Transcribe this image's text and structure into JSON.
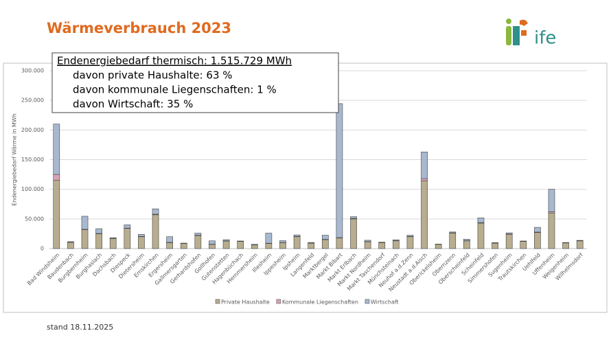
{
  "title": "Wärmeverbrauch 2023",
  "logo": "ife",
  "footer": "stand 18.11.2025",
  "chart_data": {
    "type": "stacked-bar",
    "annotations": [
      "Endenergiebedarf thermisch: 1.515.729  MWh",
      "davon private Haushalte: 63 %",
      "davon kommunale Liegenschaften: 1 %",
      "davon Wirtschaft: 35 %"
    ],
    "ylabel": "Endenergiebedarf Wärme in MWh",
    "categories": [
      "Bad Windsheim",
      "Baudenbach",
      "Burgbernheim",
      "Burghaslach",
      "Dachsbach",
      "Diespeck",
      "Dietersheim",
      "Emskirchen",
      "Ergersheim",
      "Gallmersgarten",
      "Gerhardshofen",
      "Gollhofen",
      "Gutenstetten",
      "Hagenbüchach",
      "Hemmersheim",
      "Illesheim",
      "Ippesheim",
      "Ipsheim",
      "Langenfeld",
      "Marktbergel",
      "Markt Bibart",
      "Markt Erlbach",
      "Markt Nordheim",
      "Markt Taschendorf",
      "Münchsteinach",
      "Neuhof a.d.Zenn",
      "Neustadt a.d.Aisch",
      "Oberickelsheim",
      "Obernzenn",
      "Oberscheinfeld",
      "Scheinfeld",
      "Simmershofen",
      "Sugenheim",
      "Trautskirchen",
      "Uehlfeld",
      "Uffenheim",
      "Weigenheim",
      "Wilhelmsdorf"
    ],
    "series": [
      {
        "name": "Private Haushalte",
        "color": "#b8ad8e",
        "values": [
          115000,
          10500,
          32000,
          25000,
          17000,
          34000,
          20000,
          57000,
          10000,
          8500,
          22000,
          7000,
          12500,
          12000,
          6000,
          8500,
          10000,
          20000,
          9000,
          15000,
          18000,
          50000,
          11500,
          10000,
          13000,
          20000,
          114000,
          7000,
          26000,
          13000,
          43000,
          9000,
          24000,
          12000,
          27000,
          60000,
          9500,
          13000
        ]
      },
      {
        "name": "Kommunale Liegenschaften",
        "color": "#d9a3b4",
        "values": [
          10000,
          300,
          500,
          500,
          300,
          500,
          500,
          1000,
          500,
          200,
          500,
          300,
          500,
          300,
          200,
          500,
          300,
          500,
          300,
          500,
          500,
          800,
          300,
          300,
          300,
          500,
          4000,
          200,
          500,
          300,
          800,
          200,
          500,
          300,
          800,
          2000,
          200,
          300
        ]
      },
      {
        "name": "Wirtschaft",
        "color": "#a7b8d0",
        "values": [
          85000,
          800,
          22000,
          8000,
          1000,
          5500,
          3500,
          9000,
          9500,
          500,
          3500,
          5700,
          2000,
          500,
          1000,
          17000,
          3000,
          2500,
          1000,
          7000,
          226000,
          3000,
          2200,
          500,
          1500,
          2000,
          45000,
          300,
          1500,
          2500,
          8000,
          800,
          2000,
          500,
          8000,
          38000,
          500,
          500
        ]
      }
    ],
    "ylim": [
      0,
      300000
    ],
    "yticks": [
      0,
      {
        "value": 50000,
        "label": "50.000"
      },
      {
        "value": 100000,
        "label": "100.000"
      },
      {
        "value": 150000,
        "label": "150.000"
      },
      {
        "value": 200000,
        "label": "200.000"
      },
      {
        "value": 250000,
        "label": "250.000"
      },
      {
        "value": 300000,
        "label": "300.000"
      }
    ],
    "grid": true,
    "legend": "bottom"
  }
}
